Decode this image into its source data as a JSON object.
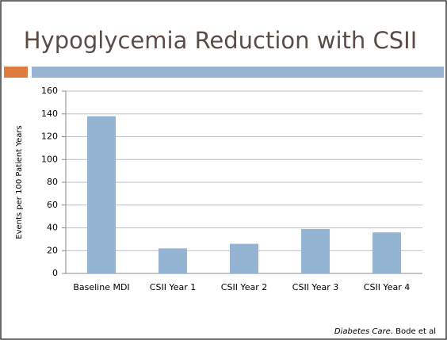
{
  "chart_data": {
    "type": "bar",
    "title": "Hypoglycemia Reduction with CSII",
    "y_label": "Events per 100 Patient Years",
    "categories": [
      "Baseline MDI",
      "CSII Year 1",
      "CSII Year 2",
      "CSII Year 3",
      "CSII Year 4"
    ],
    "values": [
      138,
      22,
      26,
      39,
      36
    ],
    "color": "#95b3d3",
    "ylim": [
      0,
      160
    ],
    "yticks": [
      0,
      20,
      40,
      60,
      80,
      100,
      120,
      140,
      160
    ],
    "grid": true,
    "source_journal": "Diabetes Care",
    "source_rest": ". Bode et al"
  }
}
